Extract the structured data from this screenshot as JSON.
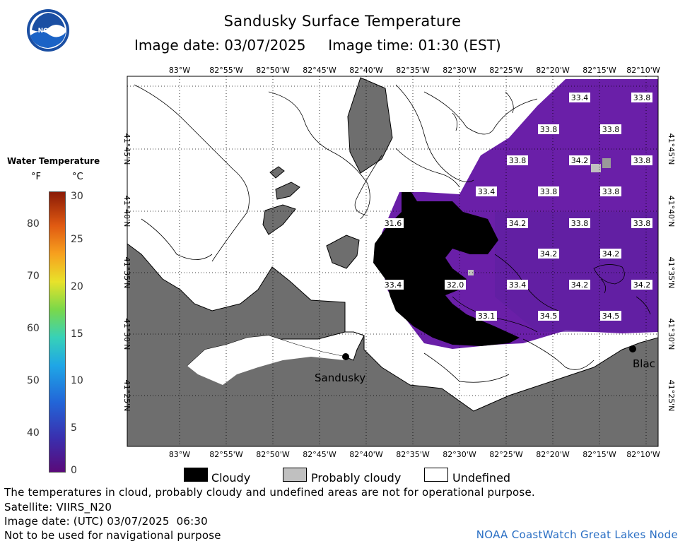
{
  "header": {
    "title": "Sandusky Surface Temperature",
    "subtitle": "Image date: 03/07/2025     Image time: 01:30 (EST)",
    "logo_text": "NOAA"
  },
  "colorbar": {
    "title": "Water Temperature",
    "unit_f": "°F",
    "unit_c": "°C",
    "f_ticks": [
      "80",
      "70",
      "60",
      "50",
      "40"
    ],
    "c_ticks": [
      "30",
      "25",
      "20",
      "15",
      "10",
      "5",
      "0"
    ]
  },
  "map": {
    "lon_labels": [
      "83°W",
      "82°55'W",
      "82°50'W",
      "82°45'W",
      "82°40'W",
      "82°35'W",
      "82°30'W",
      "82°25'W",
      "82°20'W",
      "82°15'W",
      "82°10'W"
    ],
    "lat_labels": [
      "41°45'N",
      "41°40'N",
      "41°35'N",
      "41°30'N",
      "41°25'N"
    ],
    "cities": [
      {
        "name": "Sandusky"
      },
      {
        "name": "Blac"
      }
    ],
    "temperatures": [
      {
        "value": "33.4"
      },
      {
        "value": "33.8"
      },
      {
        "value": "33.8"
      },
      {
        "value": "33.8"
      },
      {
        "value": "33.8"
      },
      {
        "value": "34.2"
      },
      {
        "value": "33.8"
      },
      {
        "value": "33.4"
      },
      {
        "value": "33.8"
      },
      {
        "value": "33.8"
      },
      {
        "value": "31.6"
      },
      {
        "value": "34.2"
      },
      {
        "value": "33.8"
      },
      {
        "value": "33.8"
      },
      {
        "value": "34.2"
      },
      {
        "value": "34.2"
      },
      {
        "value": "33.4"
      },
      {
        "value": "32.0"
      },
      {
        "value": "33.4"
      },
      {
        "value": "34.2"
      },
      {
        "value": "34.2"
      },
      {
        "value": "33.1"
      },
      {
        "value": "34.5"
      },
      {
        "value": "34.5"
      }
    ],
    "colors": {
      "land": "#6e6e6e",
      "cloud": "#000000",
      "probably_cloudy": "#c0c0c0",
      "water_warm": "#6a1fa8",
      "water_cold": "#5c1896"
    }
  },
  "key": {
    "cloudy": "Cloudy",
    "probably_cloudy": "Probably cloudy",
    "undefined": "Undefined"
  },
  "footer": {
    "disclaimer": "The temperatures in cloud, probably cloudy and undefined areas are not for operational purpose.",
    "satellite": "Satellite: VIIRS_N20",
    "utc_date": "Image date: (UTC) 03/07/2025  06:30",
    "nav_warning": "Not to be used for navigational purpose",
    "credit": "NOAA CoastWatch Great Lakes Node"
  }
}
